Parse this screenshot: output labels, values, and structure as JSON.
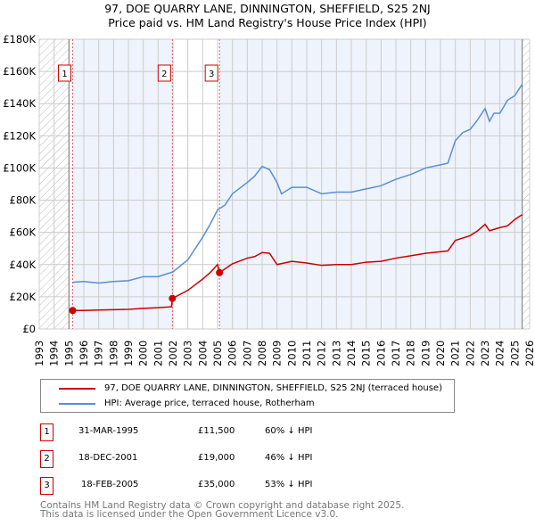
{
  "title": "97, DOE QUARRY LANE, DINNINGTON, SHEFFIELD, S25 2NJ",
  "subtitle": "Price paid vs. HM Land Registry's House Price Index (HPI)",
  "chart_data": {
    "type": "line",
    "xlim": [
      1993,
      2026
    ],
    "ylim": [
      0,
      180000
    ],
    "x_ticks": [
      "1993",
      "1994",
      "1995",
      "1996",
      "1997",
      "1998",
      "1999",
      "2000",
      "2001",
      "2002",
      "2003",
      "2004",
      "2005",
      "2006",
      "2007",
      "2008",
      "2009",
      "2010",
      "2011",
      "2012",
      "2013",
      "2014",
      "2015",
      "2016",
      "2017",
      "2018",
      "2019",
      "2020",
      "2021",
      "2022",
      "2023",
      "2024",
      "2025",
      "2026"
    ],
    "y_ticks": [
      "£0",
      "£20K",
      "£40K",
      "£60K",
      "£80K",
      "£100K",
      "£120K",
      "£140K",
      "£160K",
      "£180K"
    ],
    "series": [
      {
        "name": "97, DOE QUARRY LANE, DINNINGTON, SHEFFIELD, S25 2NJ (terraced house)",
        "color": "#cc0000",
        "x": [
          1995.25,
          1996,
          1997,
          1998,
          1999,
          2000,
          2001,
          2001.9,
          2001.96,
          2003,
          2004,
          2004.5,
          2005.0,
          2005.13,
          2006,
          2007,
          2007.5,
          2008,
          2008.5,
          2009,
          2010,
          2011,
          2012,
          2013,
          2014,
          2015,
          2016,
          2017,
          2018,
          2019,
          2020,
          2020.5,
          2021,
          2022,
          2022.5,
          2023,
          2023.3,
          2024,
          2024.5,
          2025,
          2025.5
        ],
        "y": [
          11500,
          11500,
          11800,
          12000,
          12200,
          12800,
          13200,
          13800,
          19000,
          24000,
          31000,
          35000,
          40000,
          35000,
          40500,
          44000,
          45000,
          47500,
          47000,
          40000,
          42000,
          41000,
          39500,
          40000,
          40000,
          41500,
          42000,
          44000,
          45500,
          47000,
          48000,
          48500,
          55000,
          58000,
          61000,
          65000,
          61000,
          63000,
          64000,
          68000,
          71000
        ]
      },
      {
        "name": "HPI: Average price, terraced house, Rotherham",
        "color": "#5b8fd0",
        "x": [
          1995.25,
          1996,
          1997,
          1998,
          1999,
          2000,
          2001,
          2001.5,
          2002,
          2003,
          2004,
          2004.5,
          2005,
          2005.5,
          2006,
          2007,
          2007.5,
          2008,
          2008.5,
          2009,
          2009.3,
          2010,
          2011,
          2012,
          2013,
          2014,
          2015,
          2016,
          2017,
          2018,
          2019,
          2020,
          2020.5,
          2021,
          2021.5,
          2022,
          2022.5,
          2023,
          2023.3,
          2023.6,
          2024,
          2024.5,
          2025,
          2025.5
        ],
        "y": [
          29000,
          29500,
          28500,
          29500,
          30000,
          32500,
          32500,
          34000,
          35500,
          43000,
          57000,
          65000,
          74000,
          77000,
          84000,
          91000,
          95000,
          101000,
          99000,
          91000,
          84000,
          88000,
          88000,
          84000,
          85000,
          85000,
          87000,
          89000,
          93000,
          96000,
          100000,
          102000,
          103000,
          117000,
          122000,
          124000,
          130000,
          137000,
          129000,
          134000,
          134000,
          142000,
          145000,
          152000
        ]
      }
    ],
    "annotations": [
      {
        "label": "1",
        "x": 1995.25
      },
      {
        "label": "2",
        "x": 2001.96
      },
      {
        "label": "3",
        "x": 2005.13
      }
    ],
    "data_end": 2025.5,
    "legend": "bottom"
  },
  "legend": [
    "97, DOE QUARRY LANE, DINNINGTON, SHEFFIELD, S25 2NJ (terraced house)",
    "HPI: Average price, terraced house, Rotherham"
  ],
  "sales": [
    {
      "n": "1",
      "date": "31-MAR-1995",
      "price": "£11,500",
      "hpi": "60% ↓ HPI"
    },
    {
      "n": "2",
      "date": "18-DEC-2001",
      "price": "£19,000",
      "hpi": "46% ↓ HPI"
    },
    {
      "n": "3",
      "date": "18-FEB-2005",
      "price": "£35,000",
      "hpi": "53% ↓ HPI"
    }
  ],
  "footer": [
    "Contains HM Land Registry data © Crown copyright and database right 2025.",
    "This data is licensed under the Open Government Licence v3.0."
  ]
}
